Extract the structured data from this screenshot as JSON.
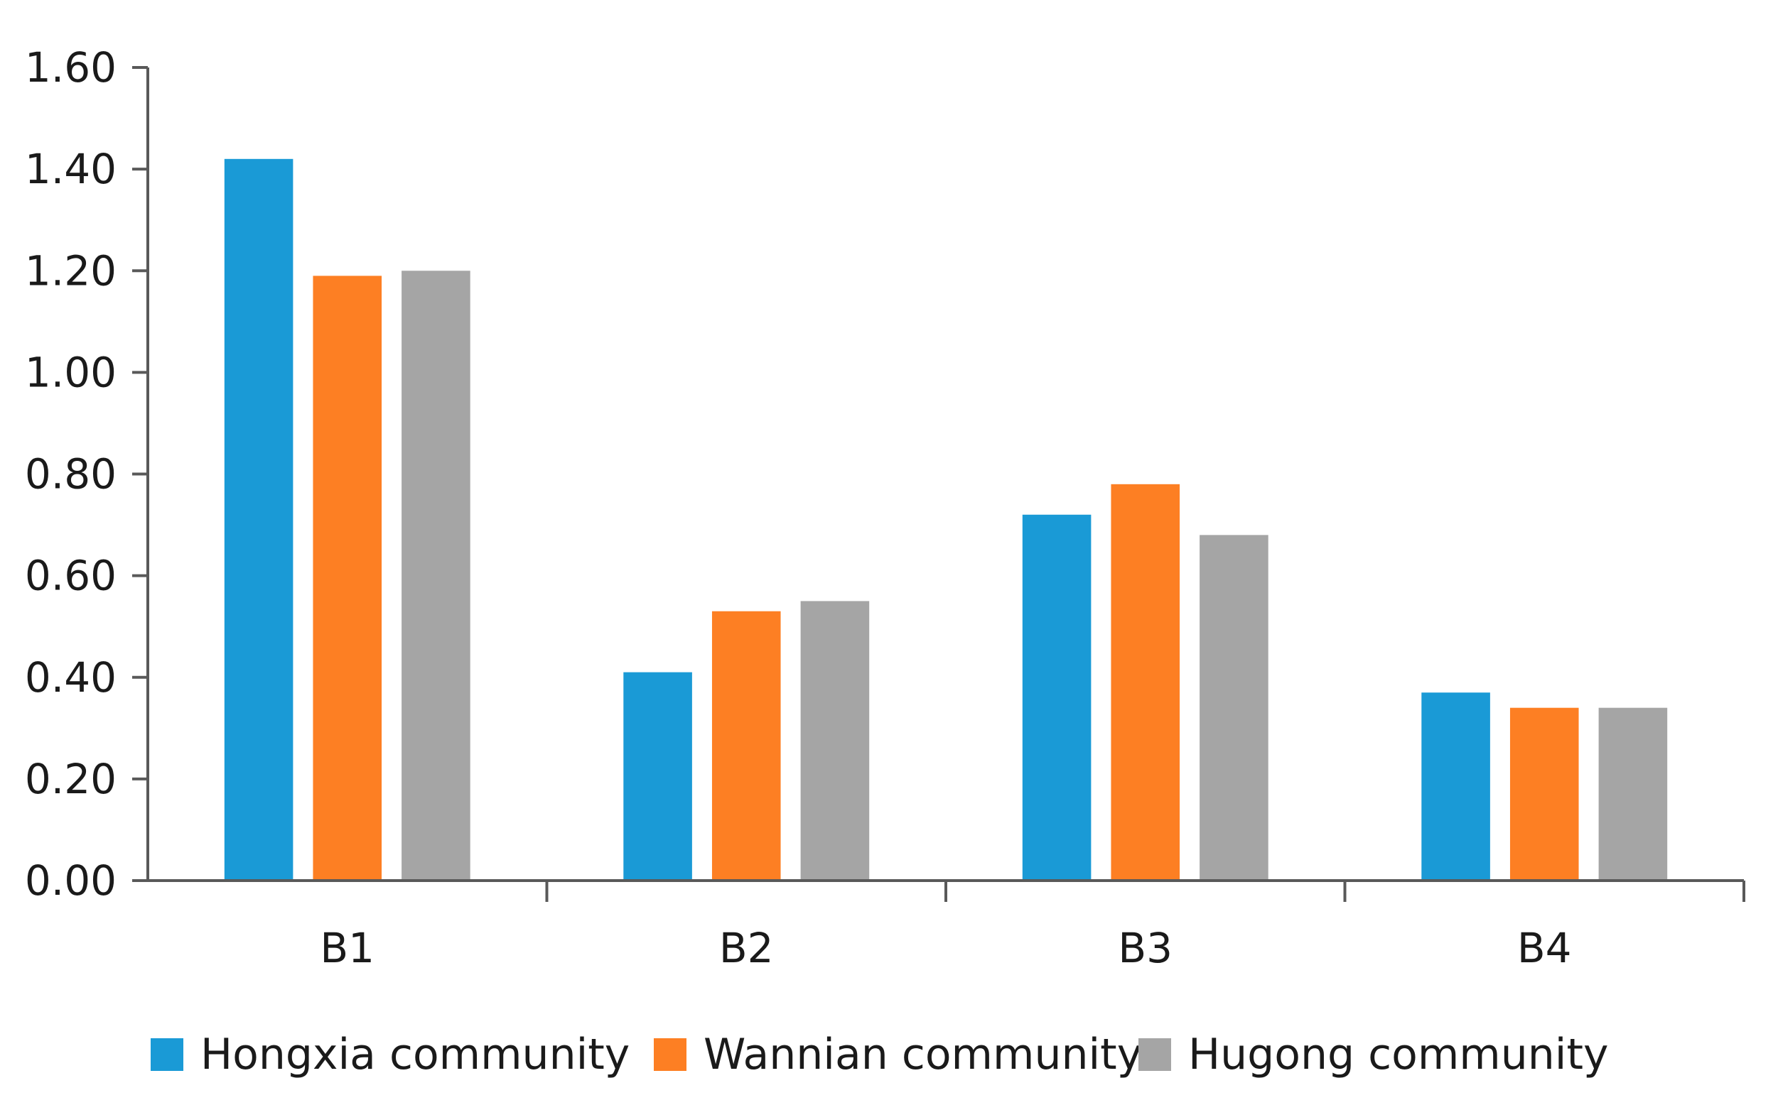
{
  "chart_data": {
    "type": "bar",
    "title": "",
    "xlabel": "",
    "ylabel": "",
    "categories": [
      "B1",
      "B2",
      "B3",
      "B4"
    ],
    "series": [
      {
        "name": "Hongxia community",
        "color": "#1a9ad6",
        "values": [
          1.42,
          0.41,
          0.72,
          0.37
        ]
      },
      {
        "name": "Wannian community",
        "color": "#fd7f23",
        "values": [
          1.19,
          0.53,
          0.78,
          0.34
        ]
      },
      {
        "name": "Hugong community",
        "color": "#a5a5a5",
        "values": [
          1.2,
          0.55,
          0.68,
          0.34
        ]
      }
    ],
    "ylim": [
      0,
      1.6
    ],
    "yticks": [
      "0.00",
      "0.20",
      "0.40",
      "0.60",
      "0.80",
      "1.00",
      "1.20",
      "1.40",
      "1.60"
    ],
    "grid": false,
    "legend_position": "bottom"
  }
}
